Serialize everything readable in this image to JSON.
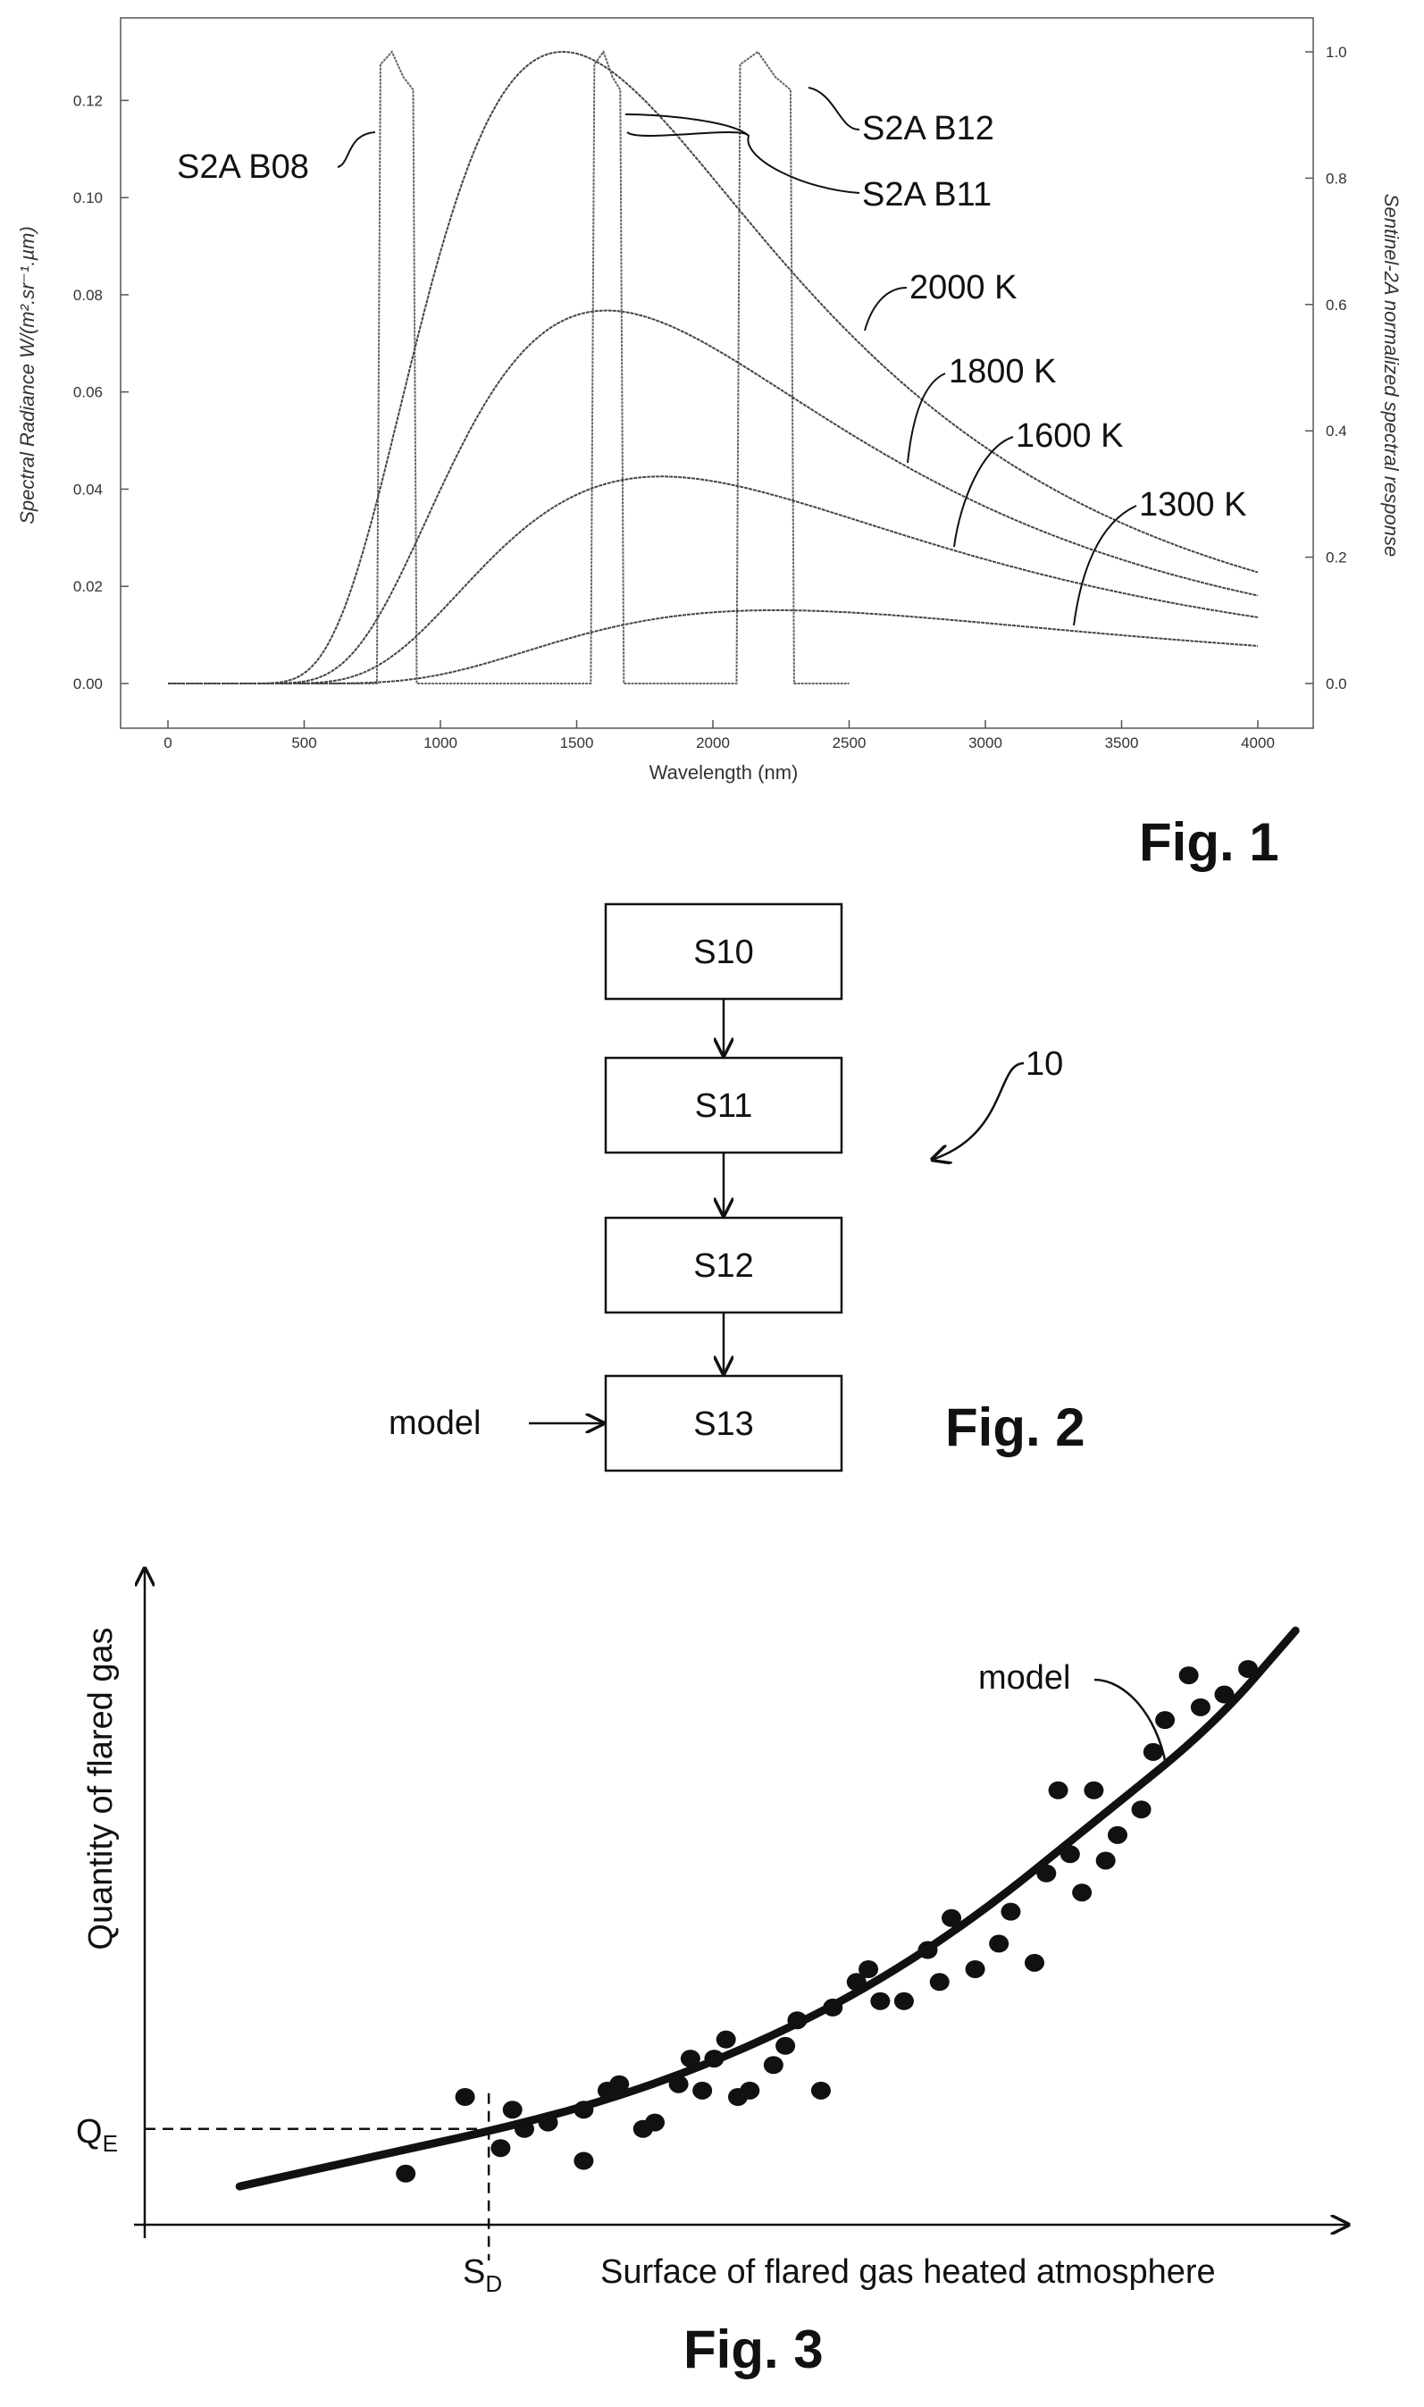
{
  "figures": {
    "fig1_caption": "Fig. 1",
    "fig2_caption": "Fig. 2",
    "fig3_caption": "Fig. 3"
  },
  "chart_data": [
    {
      "type": "line",
      "title": "",
      "xlabel": "Wavelength (nm)",
      "ylabel": "Spectral Radiance W/(m².sr⁻¹.µm)",
      "y2label": "Sentinel-2A normalized spectral response",
      "xlim": [
        0,
        4000
      ],
      "ylim": [
        0,
        0.13
      ],
      "y2lim": [
        0,
        1.0
      ],
      "x_ticks": [
        "0",
        "500",
        "1000",
        "1500",
        "2000",
        "2500",
        "3000",
        "3500",
        "4000"
      ],
      "y_ticks": [
        "0.00",
        "0.02",
        "0.04",
        "0.06",
        "0.08",
        "0.10",
        "0.12"
      ],
      "y2_ticks": [
        "0.0",
        "0.2",
        "0.4",
        "0.6",
        "0.8",
        "1.0"
      ],
      "grid": false,
      "series": [
        {
          "name": "2000 K",
          "temperature_k": 2000,
          "scale": 1.0
        },
        {
          "name": "1800 K",
          "temperature_k": 1800,
          "scale": 1.0
        },
        {
          "name": "1600 K",
          "temperature_k": 1600,
          "scale": 1.0
        },
        {
          "name": "1300 K",
          "temperature_k": 1300,
          "scale": 1.0
        }
      ],
      "bands": [
        {
          "name": "S2A B08",
          "x_start": 780,
          "x_end": 900,
          "response": 1.0
        },
        {
          "name": "S2A B11",
          "x_start": 1565,
          "x_end": 1660,
          "response": 1.0
        },
        {
          "name": "S2A B12",
          "x_start": 2100,
          "x_end": 2285,
          "response": 1.0
        }
      ],
      "band_response_xlim": [
        0,
        2500
      ]
    },
    {
      "type": "scatter",
      "title": "",
      "xlabel": "Surface of flared gas heated atmosphere",
      "ylabel": "Quantity of flared gas",
      "xlim": [
        0,
        100
      ],
      "ylim": [
        0,
        100
      ],
      "curve_label": "model",
      "x_marker_label": "S",
      "x_marker_sub": "D",
      "y_marker_label": "Q",
      "y_marker_sub": "E",
      "marker": {
        "x": 29,
        "y": 15
      },
      "model_curve": [
        [
          8,
          6
        ],
        [
          20,
          11
        ],
        [
          30,
          15
        ],
        [
          40,
          20
        ],
        [
          50,
          27
        ],
        [
          60,
          36
        ],
        [
          70,
          48
        ],
        [
          80,
          63
        ],
        [
          90,
          78
        ],
        [
          97,
          93
        ]
      ],
      "points": [
        [
          22,
          8
        ],
        [
          27,
          20
        ],
        [
          30,
          12
        ],
        [
          31,
          18
        ],
        [
          32,
          15
        ],
        [
          34,
          16
        ],
        [
          37,
          18
        ],
        [
          37,
          10
        ],
        [
          39,
          21
        ],
        [
          40,
          22
        ],
        [
          42,
          15
        ],
        [
          43,
          16
        ],
        [
          45,
          22
        ],
        [
          46,
          26
        ],
        [
          47,
          21
        ],
        [
          48,
          26
        ],
        [
          49,
          29
        ],
        [
          50,
          20
        ],
        [
          51,
          21
        ],
        [
          53,
          25
        ],
        [
          54,
          28
        ],
        [
          55,
          32
        ],
        [
          57,
          21
        ],
        [
          58,
          34
        ],
        [
          60,
          38
        ],
        [
          61,
          40
        ],
        [
          62,
          35
        ],
        [
          64,
          35
        ],
        [
          66,
          43
        ],
        [
          67,
          38
        ],
        [
          68,
          48
        ],
        [
          70,
          40
        ],
        [
          72,
          44
        ],
        [
          73,
          49
        ],
        [
          75,
          41
        ],
        [
          76,
          55
        ],
        [
          77,
          68
        ],
        [
          78,
          58
        ],
        [
          79,
          52
        ],
        [
          80,
          68
        ],
        [
          81,
          57
        ],
        [
          82,
          61
        ],
        [
          84,
          65
        ],
        [
          85,
          74
        ],
        [
          86,
          79
        ],
        [
          88,
          86
        ],
        [
          89,
          81
        ],
        [
          91,
          83
        ],
        [
          93,
          87
        ]
      ]
    }
  ],
  "fig2": {
    "steps": [
      "S10",
      "S11",
      "S12",
      "S13"
    ],
    "ref_numeral": "10",
    "input_label": "model"
  }
}
